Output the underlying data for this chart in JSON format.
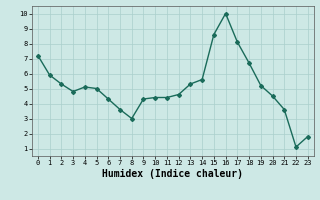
{
  "x": [
    0,
    1,
    2,
    3,
    4,
    5,
    6,
    7,
    8,
    9,
    10,
    11,
    12,
    13,
    14,
    15,
    16,
    17,
    18,
    19,
    20,
    21,
    22,
    23
  ],
  "y": [
    7.2,
    5.9,
    5.3,
    4.8,
    5.1,
    5.0,
    4.3,
    3.6,
    3.0,
    4.3,
    4.4,
    4.4,
    4.6,
    5.3,
    5.6,
    8.6,
    10.0,
    8.1,
    6.7,
    5.2,
    4.5,
    3.6,
    1.1,
    1.8
  ],
  "line_color": "#1a6b5a",
  "marker": "D",
  "marker_size": 2.0,
  "bg_color": "#cde8e5",
  "grid_color": "#aacfcc",
  "xlabel": "Humidex (Indice chaleur)",
  "xlabel_fontsize": 7,
  "xlim": [
    -0.5,
    23.5
  ],
  "ylim": [
    0.5,
    10.5
  ],
  "yticks": [
    1,
    2,
    3,
    4,
    5,
    6,
    7,
    8,
    9,
    10
  ],
  "xticks": [
    0,
    1,
    2,
    3,
    4,
    5,
    6,
    7,
    8,
    9,
    10,
    11,
    12,
    13,
    14,
    15,
    16,
    17,
    18,
    19,
    20,
    21,
    22,
    23
  ],
  "tick_fontsize": 5,
  "linewidth": 1.0
}
